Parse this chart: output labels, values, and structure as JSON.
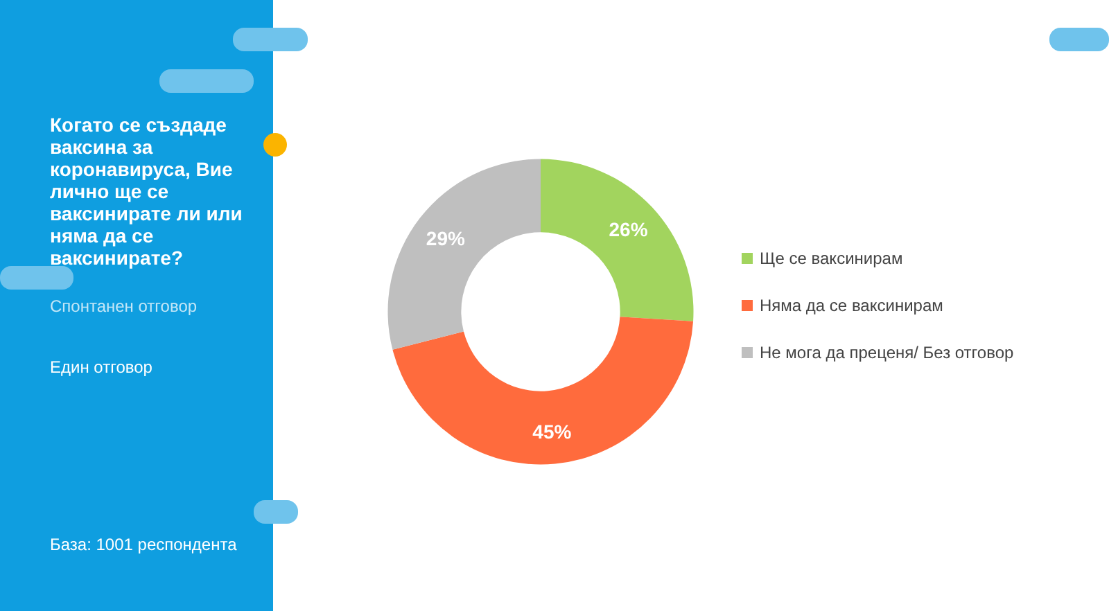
{
  "chart_data": {
    "type": "donut",
    "title": "Когато се създаде ваксина за коронавируса, Вие лично ще се ваксинирате ли или няма да се ваксинирате?",
    "annotations": [
      "Спонтанен отговор",
      "Един отговор",
      "База: 1001 респондента"
    ],
    "categories": [
      "Ще се ваксинирам",
      "Няма да се ваксинирам",
      "Не мога да преценя/ Без отговор"
    ],
    "values": [
      26,
      45,
      29
    ],
    "colors": [
      "#a2d45e",
      "#ff6b3d",
      "#bfbfbf"
    ],
    "value_labels": [
      "26%",
      "45%",
      "29%"
    ],
    "legend": "right"
  }
}
